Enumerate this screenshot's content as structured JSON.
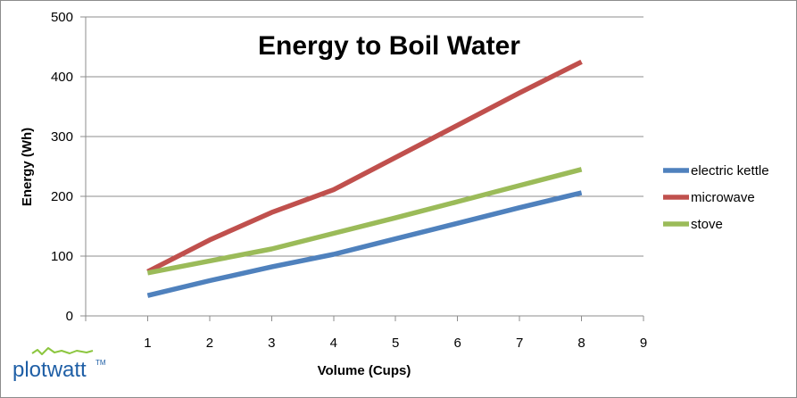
{
  "chart_data": {
    "type": "line",
    "title": "Energy to Boil Water",
    "xlabel": "Volume (Cups)",
    "ylabel": "Energy (Wh)",
    "xlim": [
      0,
      9
    ],
    "ylim": [
      0,
      500
    ],
    "xticks": [
      1,
      2,
      3,
      4,
      5,
      6,
      7,
      8,
      9
    ],
    "yticks": [
      0,
      100,
      200,
      300,
      400,
      500
    ],
    "grid": "horizontal",
    "legend": "right",
    "x": [
      1,
      2,
      3,
      4,
      5,
      6,
      7,
      8
    ],
    "series": [
      {
        "name": "electric kettle",
        "color": "#4f81bd",
        "values": [
          34,
          59,
          82,
          103,
          129,
          155,
          181,
          206
        ]
      },
      {
        "name": "microwave",
        "color": "#c0504d",
        "values": [
          74,
          127,
          173,
          211,
          265,
          319,
          373,
          425
        ]
      },
      {
        "name": "stove",
        "color": "#9bbb59",
        "values": [
          72,
          92,
          112,
          138,
          164,
          191,
          218,
          245
        ]
      }
    ]
  },
  "branding": {
    "name": "plotwatt",
    "trademark": "TM",
    "logo_color": "#8cc63f"
  }
}
